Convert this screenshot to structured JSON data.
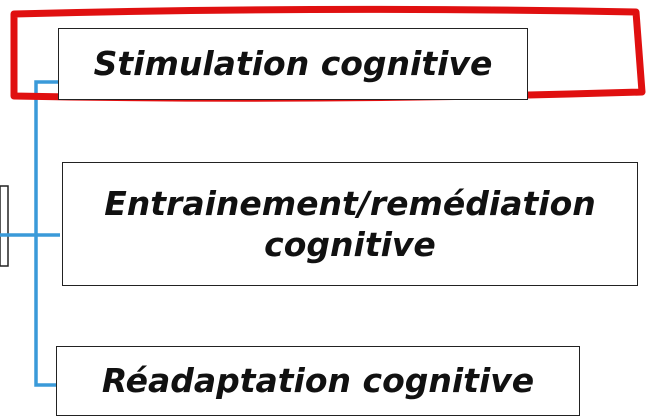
{
  "nodes": [
    {
      "label": "Stimulation cognitive"
    },
    {
      "label": "Entrainement/remédiation cognitive"
    },
    {
      "label": "Réadaptation cognitive"
    }
  ]
}
